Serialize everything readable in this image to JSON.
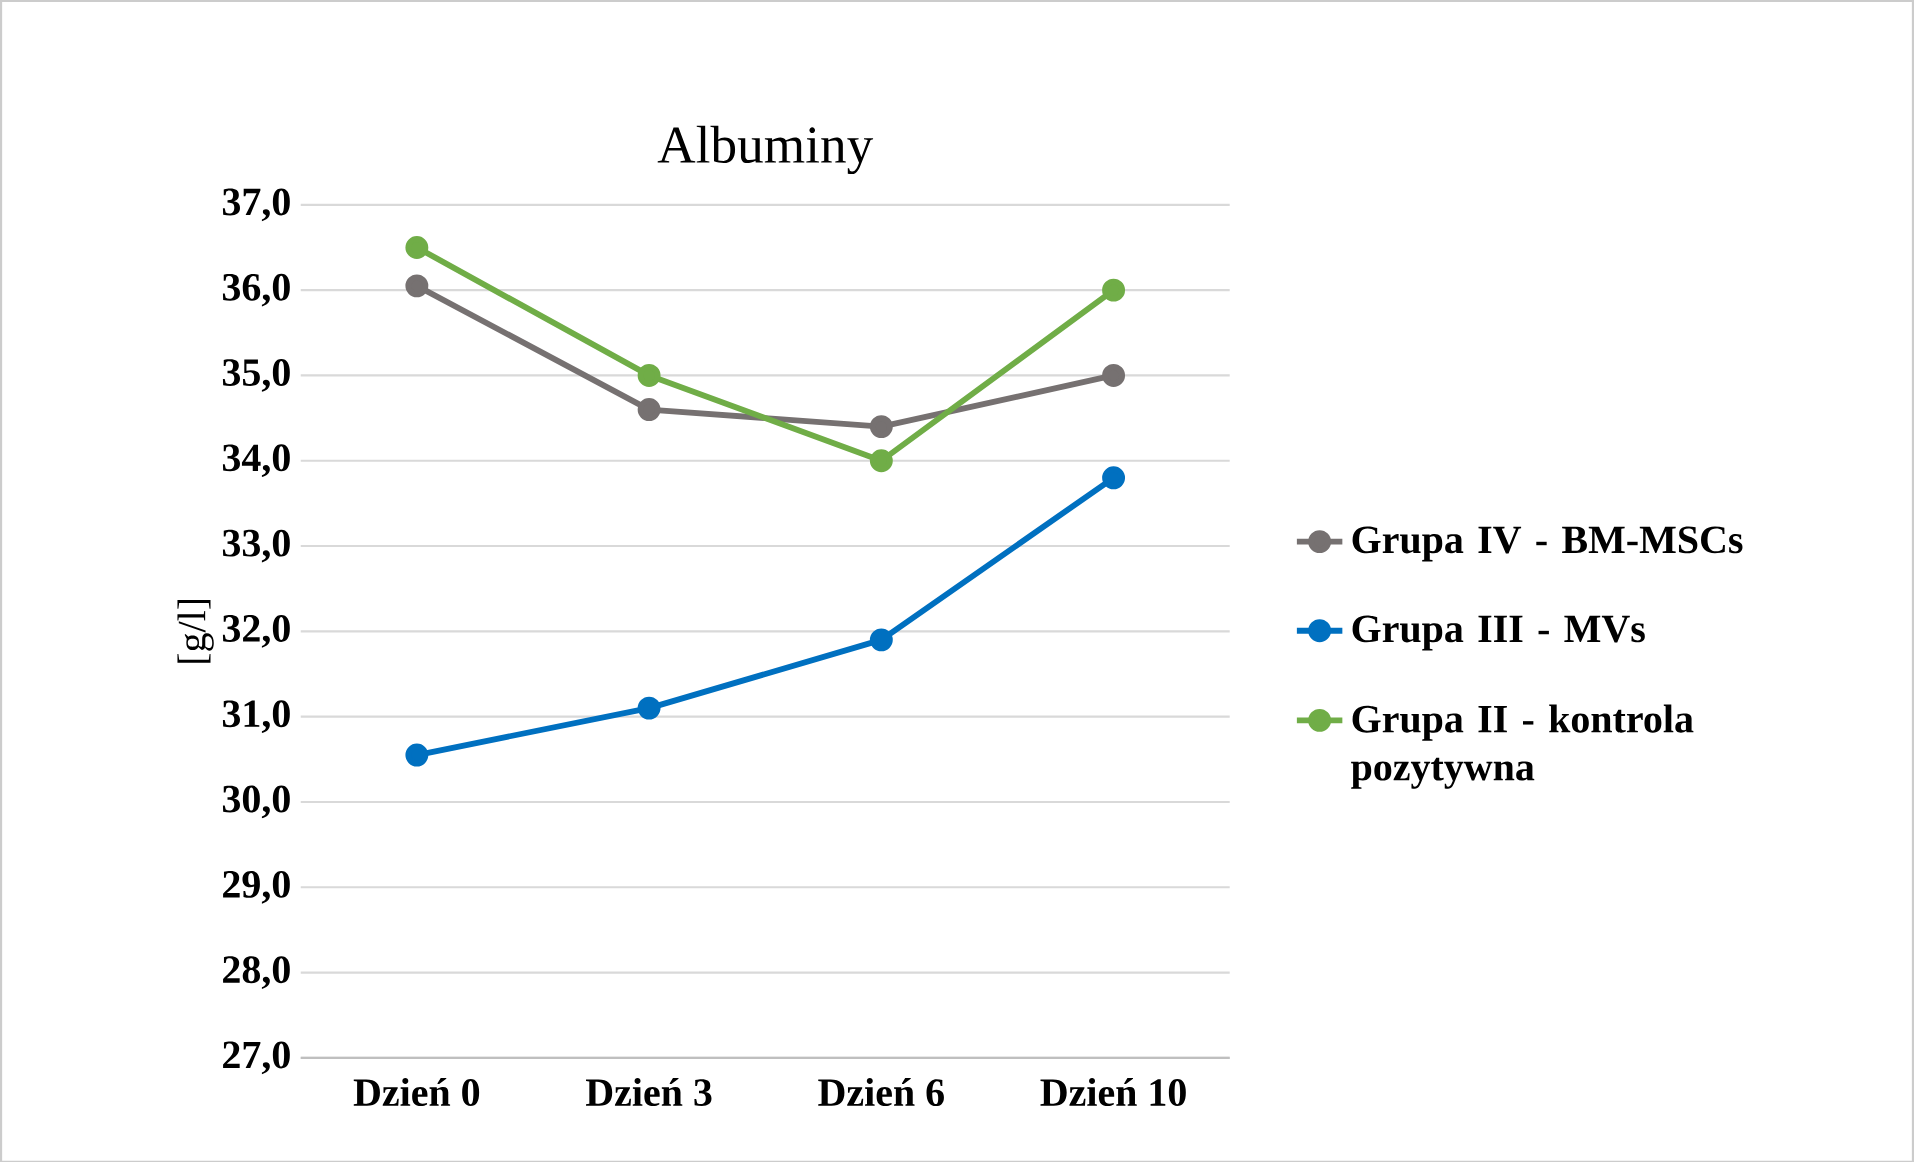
{
  "chart_data": {
    "type": "line",
    "title": "Albuminy",
    "ylabel": "[g/l]",
    "categories": [
      "Dzień 0",
      "Dzień 3",
      "Dzień 6",
      "Dzień 10"
    ],
    "series": [
      {
        "name": "Grupa IV - BM-MSCs",
        "color": "#767171",
        "values": [
          36.05,
          34.6,
          34.4,
          35.0
        ]
      },
      {
        "name": "Grupa III - MVs",
        "color": "#0070c0",
        "values": [
          30.55,
          31.1,
          31.9,
          33.8
        ]
      },
      {
        "name": "Grupa II - kontrola pozytywna",
        "color": "#70ad47",
        "values": [
          36.5,
          35.0,
          34.0,
          36.0
        ]
      }
    ],
    "ylim": [
      27,
      37
    ],
    "yticks": [
      {
        "value": 27,
        "label": "27,0"
      },
      {
        "value": 28,
        "label": "28,0"
      },
      {
        "value": 29,
        "label": "29,0"
      },
      {
        "value": 30,
        "label": "30,0"
      },
      {
        "value": 31,
        "label": "31,0"
      },
      {
        "value": 32,
        "label": "32,0"
      },
      {
        "value": 33,
        "label": "33,0"
      },
      {
        "value": 34,
        "label": "34,0"
      },
      {
        "value": 35,
        "label": "35,0"
      },
      {
        "value": 36,
        "label": "36,0"
      },
      {
        "value": 37,
        "label": "37,0"
      }
    ],
    "grid": "y",
    "legend": "right",
    "marker": "circle",
    "line_style": "solid"
  }
}
